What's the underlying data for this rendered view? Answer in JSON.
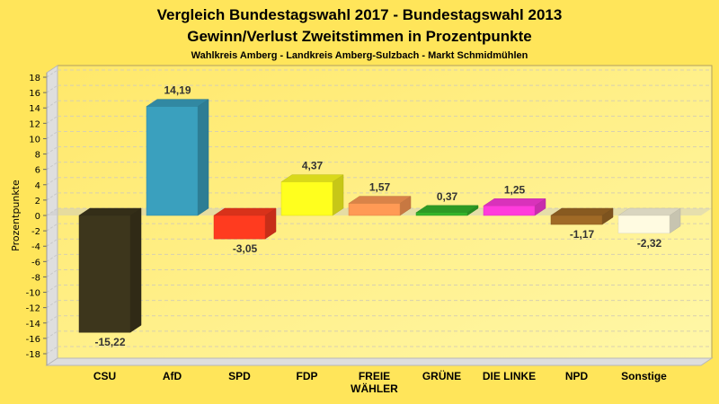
{
  "chart_data": {
    "type": "bar",
    "title": "Vergleich Bundestagswahl 2017 - Bundestagswahl 2013",
    "subtitle": "Gewinn/Verlust Zweitstimmen in Prozentpunkte",
    "subsubtitle": "Wahlkreis Amberg - Landkreis Amberg-Sulzbach - Markt Schmidmühlen",
    "xlabel": "",
    "ylabel": "Prozentpunkte",
    "ylim": [
      -18,
      18
    ],
    "yticks": [
      "18",
      "16",
      "14",
      "12",
      "10",
      "8",
      "6",
      "4",
      "2",
      "0",
      "-2",
      "-4",
      "-6",
      "-8",
      "-10",
      "-12",
      "-14",
      "-16",
      "-18"
    ],
    "ytick_values": [
      18,
      16,
      14,
      12,
      10,
      8,
      6,
      4,
      2,
      0,
      -2,
      -4,
      -6,
      -8,
      -10,
      -12,
      -14,
      -16,
      -18
    ],
    "grid": true,
    "categories": [
      [
        "CSU"
      ],
      [
        "AfD"
      ],
      [
        "SPD"
      ],
      [
        "FDP"
      ],
      [
        "FREIE",
        "WÄHLER"
      ],
      [
        "GRÜNE"
      ],
      [
        "DIE LINKE"
      ],
      [
        "NPD"
      ],
      [
        "Sonstige"
      ]
    ],
    "values": [
      -15.22,
      14.19,
      -3.05,
      4.37,
      1.57,
      0.37,
      1.25,
      -1.17,
      -2.32
    ],
    "value_labels": [
      "-15,22",
      "14,19",
      "-3,05",
      "4,37",
      "1,57",
      "0,37",
      "1,25",
      "-1,17",
      "-2,32"
    ],
    "colors": [
      "#3d361c",
      "#3aa0be",
      "#ff3b1f",
      "#ffff1e",
      "#ff9a55",
      "#35b52a",
      "#ff3bdc",
      "#a06a26",
      "#fffbe1"
    ]
  }
}
